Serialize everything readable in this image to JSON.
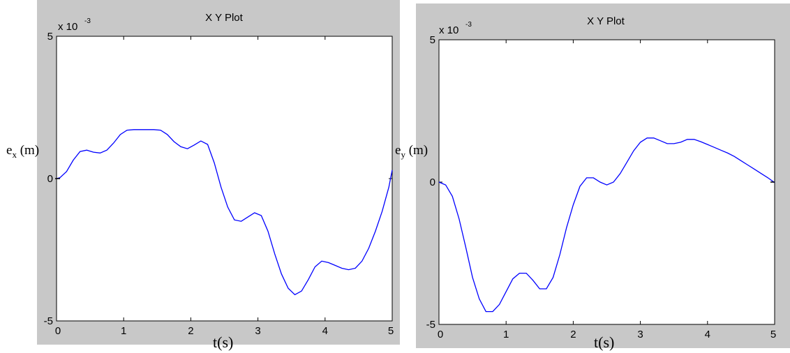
{
  "chart_data": [
    {
      "type": "line",
      "title": "X Y Plot",
      "ylabel_main": "e",
      "ylabel_sub": "x",
      "ylabel_unit": " (m)",
      "xlabel": "t(s)",
      "multiplier_base": "x 10",
      "multiplier_exp": "-3",
      "xlim": [
        0,
        5
      ],
      "ylim": [
        -5,
        5
      ],
      "xticks": [
        "0",
        "1",
        "2",
        "3",
        "4",
        "5"
      ],
      "yticks": [
        "5",
        "0",
        "-5"
      ],
      "grid": false,
      "line_color": "#0000ff",
      "series": [
        {
          "x": [
            0,
            0.05,
            0.15,
            0.25,
            0.35,
            0.45,
            0.55,
            0.65,
            0.75,
            0.85,
            0.95,
            1.05,
            1.15,
            1.3,
            1.45,
            1.55,
            1.65,
            1.75,
            1.85,
            1.95,
            2.05,
            2.15,
            2.25,
            2.35,
            2.45,
            2.55,
            2.65,
            2.75,
            2.85,
            2.95,
            3.05,
            3.15,
            3.25,
            3.35,
            3.45,
            3.55,
            3.65,
            3.75,
            3.85,
            3.95,
            4.05,
            4.15,
            4.25,
            4.35,
            4.45,
            4.55,
            4.65,
            4.75,
            4.85,
            4.95,
            5.0
          ],
          "y": [
            0,
            0.03,
            0.25,
            0.65,
            0.95,
            1.0,
            0.93,
            0.9,
            1.0,
            1.25,
            1.55,
            1.7,
            1.72,
            1.72,
            1.72,
            1.7,
            1.55,
            1.3,
            1.12,
            1.05,
            1.18,
            1.32,
            1.2,
            0.55,
            -0.3,
            -1.0,
            -1.45,
            -1.5,
            -1.35,
            -1.2,
            -1.3,
            -1.85,
            -2.65,
            -3.35,
            -3.85,
            -4.08,
            -3.95,
            -3.55,
            -3.1,
            -2.9,
            -2.95,
            -3.05,
            -3.15,
            -3.2,
            -3.15,
            -2.9,
            -2.45,
            -1.85,
            -1.15,
            -0.3,
            0.3
          ]
        }
      ]
    },
    {
      "type": "line",
      "title": "X Y Plot",
      "ylabel_main": "e",
      "ylabel_sub": "y",
      "ylabel_unit": " (m)",
      "xlabel": "t(s)",
      "multiplier_base": "x 10",
      "multiplier_exp": "-3",
      "xlim": [
        0,
        5
      ],
      "ylim": [
        -5,
        5
      ],
      "xticks": [
        "0",
        "1",
        "2",
        "3",
        "4",
        "5"
      ],
      "yticks": [
        "5",
        "0",
        "-5"
      ],
      "grid": false,
      "line_color": "#0000ff",
      "series": [
        {
          "x": [
            0,
            0.1,
            0.2,
            0.3,
            0.4,
            0.5,
            0.6,
            0.7,
            0.8,
            0.9,
            1.0,
            1.1,
            1.2,
            1.3,
            1.4,
            1.5,
            1.6,
            1.7,
            1.8,
            1.9,
            2.0,
            2.1,
            2.2,
            2.3,
            2.4,
            2.5,
            2.6,
            2.7,
            2.8,
            2.9,
            3.0,
            3.1,
            3.2,
            3.3,
            3.4,
            3.5,
            3.6,
            3.7,
            3.8,
            3.9,
            4.0,
            4.1,
            4.2,
            4.3,
            4.4,
            4.5,
            4.6,
            4.7,
            4.8,
            4.9,
            5.0
          ],
          "y": [
            0,
            -0.1,
            -0.5,
            -1.3,
            -2.3,
            -3.35,
            -4.1,
            -4.55,
            -4.55,
            -4.3,
            -3.85,
            -3.4,
            -3.2,
            -3.2,
            -3.45,
            -3.75,
            -3.75,
            -3.35,
            -2.55,
            -1.6,
            -0.8,
            -0.15,
            0.15,
            0.15,
            0.0,
            -0.1,
            0.0,
            0.3,
            0.7,
            1.1,
            1.4,
            1.55,
            1.55,
            1.45,
            1.35,
            1.35,
            1.4,
            1.5,
            1.5,
            1.42,
            1.32,
            1.22,
            1.12,
            1.02,
            0.9,
            0.75,
            0.6,
            0.45,
            0.3,
            0.15,
            -0.02
          ]
        }
      ]
    }
  ]
}
